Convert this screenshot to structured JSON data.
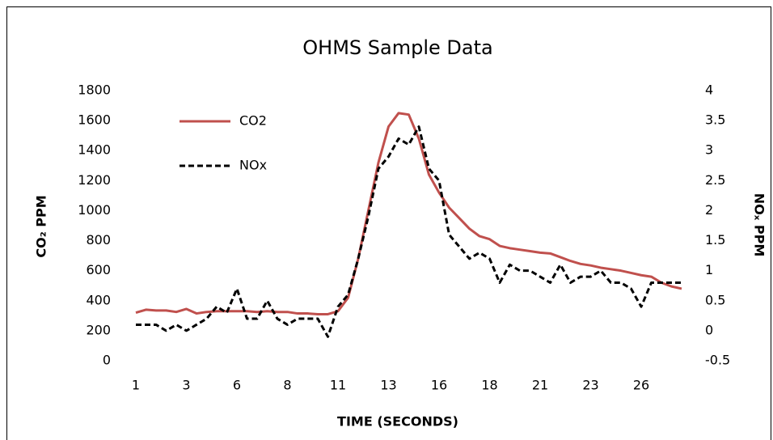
{
  "chart_data": {
    "type": "line",
    "title": "OHMS Sample Data",
    "x_label": "TIME (SECONDS)",
    "y_label": "CO₂ PPM",
    "y2_label": "NOₓ PPM",
    "categories": [
      "1",
      null,
      null,
      null,
      null,
      "3",
      null,
      null,
      null,
      null,
      "6",
      null,
      null,
      null,
      null,
      "8",
      null,
      null,
      null,
      null,
      "11",
      null,
      null,
      null,
      null,
      "13",
      null,
      null,
      null,
      null,
      "16",
      null,
      null,
      null,
      null,
      "18",
      null,
      null,
      null,
      null,
      "21",
      null,
      null,
      null,
      null,
      "23",
      null,
      null,
      null,
      null,
      "26",
      null,
      null,
      null,
      null
    ],
    "series": [
      {
        "name": "CO2",
        "color": "#c0504d",
        "line_style": "solid",
        "axis": "y",
        "values": [
          320,
          340,
          335,
          335,
          325,
          345,
          315,
          325,
          330,
          330,
          330,
          330,
          325,
          330,
          325,
          325,
          315,
          315,
          310,
          310,
          330,
          420,
          680,
          1000,
          1320,
          1560,
          1650,
          1640,
          1480,
          1240,
          1120,
          1020,
          950,
          880,
          830,
          810,
          765,
          750,
          740,
          730,
          720,
          715,
          690,
          665,
          645,
          635,
          620,
          610,
          600,
          585,
          570,
          560,
          520,
          495,
          480
        ]
      },
      {
        "name": "NOx",
        "color": "#000000",
        "line_style": "dashed",
        "axis": "y2",
        "values": [
          0.1,
          0.1,
          0.1,
          0.0,
          0.1,
          0.0,
          0.1,
          0.2,
          0.4,
          0.3,
          0.7,
          0.2,
          0.2,
          0.5,
          0.2,
          0.1,
          0.2,
          0.2,
          0.2,
          -0.1,
          0.4,
          0.6,
          1.2,
          1.9,
          2.7,
          2.9,
          3.2,
          3.1,
          3.4,
          2.7,
          2.5,
          1.6,
          1.4,
          1.2,
          1.3,
          1.2,
          0.8,
          1.1,
          1.0,
          1.0,
          0.9,
          0.8,
          1.1,
          0.8,
          0.9,
          0.9,
          1.0,
          0.8,
          0.8,
          0.7,
          0.4,
          0.8,
          0.8,
          0.8,
          0.8
        ]
      }
    ],
    "ylim": [
      0,
      1800
    ],
    "yticks": [
      0,
      200,
      400,
      600,
      800,
      1000,
      1200,
      1400,
      1600,
      1800
    ],
    "y2lim": [
      -0.5,
      4
    ],
    "y2ticks": [
      -0.5,
      0,
      0.5,
      1,
      1.5,
      2,
      2.5,
      3,
      3.5,
      4
    ],
    "grid": false,
    "legend": "upper left"
  }
}
